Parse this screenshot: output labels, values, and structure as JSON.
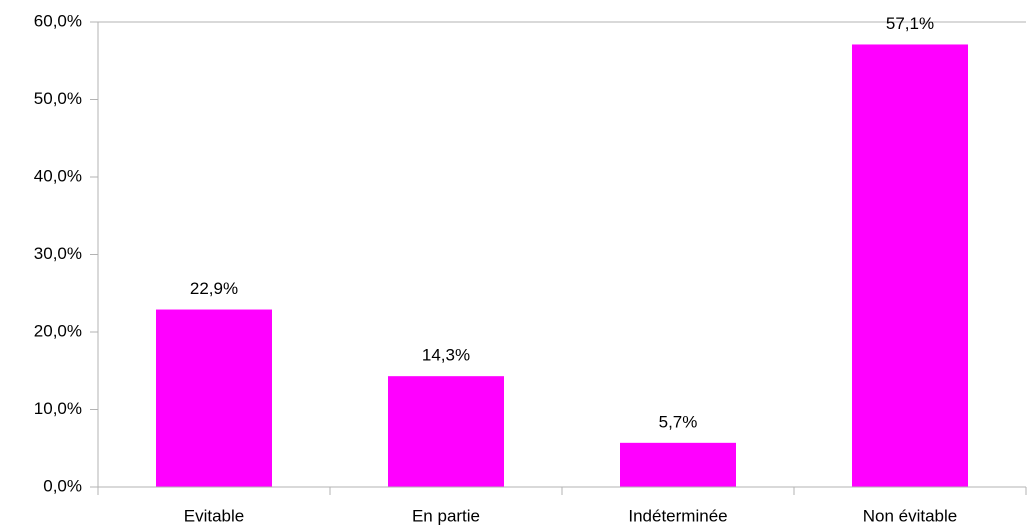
{
  "chart_data": {
    "type": "bar",
    "categories": [
      "Evitable",
      "En partie",
      "Indéterminée",
      "Non évitable"
    ],
    "values": [
      22.9,
      14.3,
      5.7,
      57.1
    ],
    "value_labels": [
      "22,9%",
      "14,3%",
      "5,7%",
      "57,1%"
    ],
    "color": "#ff00ff",
    "ylim": [
      0,
      60
    ],
    "yticks": [
      {
        "value": 0,
        "label": "0,0%"
      },
      {
        "value": 10,
        "label": "10,0%"
      },
      {
        "value": 20,
        "label": "20,0%"
      },
      {
        "value": 30,
        "label": "30,0%"
      },
      {
        "value": 40,
        "label": "40,0%"
      },
      {
        "value": 50,
        "label": "50,0%"
      },
      {
        "value": 60,
        "label": "60,0%"
      }
    ],
    "grid": false
  }
}
